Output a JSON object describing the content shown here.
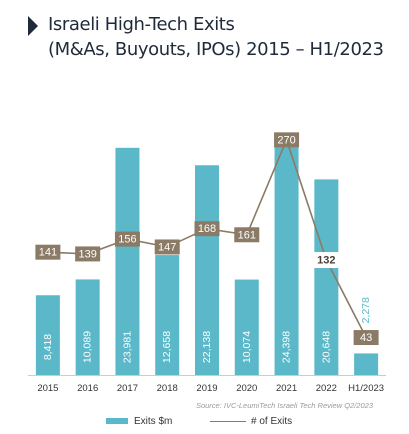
{
  "title_lines": [
    "Israeli High-Tech Exits",
    "(M&As, Buyouts, IPOs) 2015 – H1/2023"
  ],
  "source": "Source: IVC-LeumiTech Israeli Tech Review Q2/2023",
  "colors": {
    "bar": "#5bb8c9",
    "line": "#8b7b66",
    "box": "#8b7b66",
    "box_highlight": "#4a3f35",
    "title_marker": "#1f2a3a",
    "axis": "#cccccc"
  },
  "chart_data": {
    "type": "bar",
    "categories": [
      "2015",
      "2016",
      "2017",
      "2018",
      "2019",
      "2020",
      "2021",
      "2022",
      "H1/2023"
    ],
    "series": [
      {
        "name": "Exits  $m",
        "type": "bar",
        "axis": "left",
        "values": [
          8418,
          10089,
          23981,
          12658,
          22138,
          10074,
          24398,
          20648,
          2278
        ],
        "labels": [
          "8,418",
          "10,089",
          "23,981",
          "12,658",
          "22,138",
          "10,074",
          "24,398",
          "20,648",
          "2,278"
        ]
      },
      {
        "name": "# of Exits",
        "type": "line",
        "axis": "right",
        "values": [
          141,
          139,
          156,
          147,
          168,
          161,
          270,
          132,
          43
        ],
        "labels": [
          "141",
          "139",
          "156",
          "147",
          "168",
          "161",
          "270",
          "132",
          "43"
        ],
        "highlight_index": 7
      }
    ],
    "ylim_left": [
      0,
      28500
    ],
    "ylim_right": [
      0,
      310
    ],
    "grid": false,
    "legend": "bottom"
  }
}
